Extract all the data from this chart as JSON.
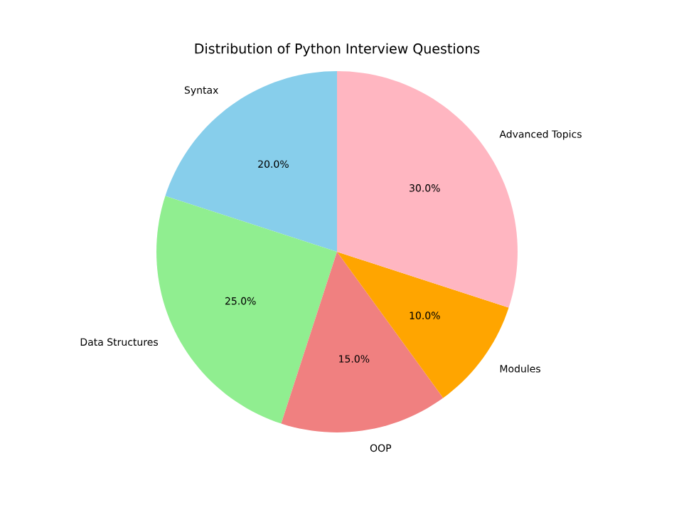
{
  "chart_data": {
    "type": "pie",
    "title": "Distribution of Python Interview Questions",
    "categories": [
      "Syntax",
      "Data Structures",
      "OOP",
      "Modules",
      "Advanced Topics"
    ],
    "values": [
      20,
      25,
      15,
      10,
      30
    ],
    "value_labels": [
      "20.0%",
      "25.0%",
      "15.0%",
      "10.0%",
      "30.0%"
    ],
    "colors": [
      "#87ceeb",
      "#90ee90",
      "#f08080",
      "#ffa500",
      "#ffb6c1"
    ]
  }
}
